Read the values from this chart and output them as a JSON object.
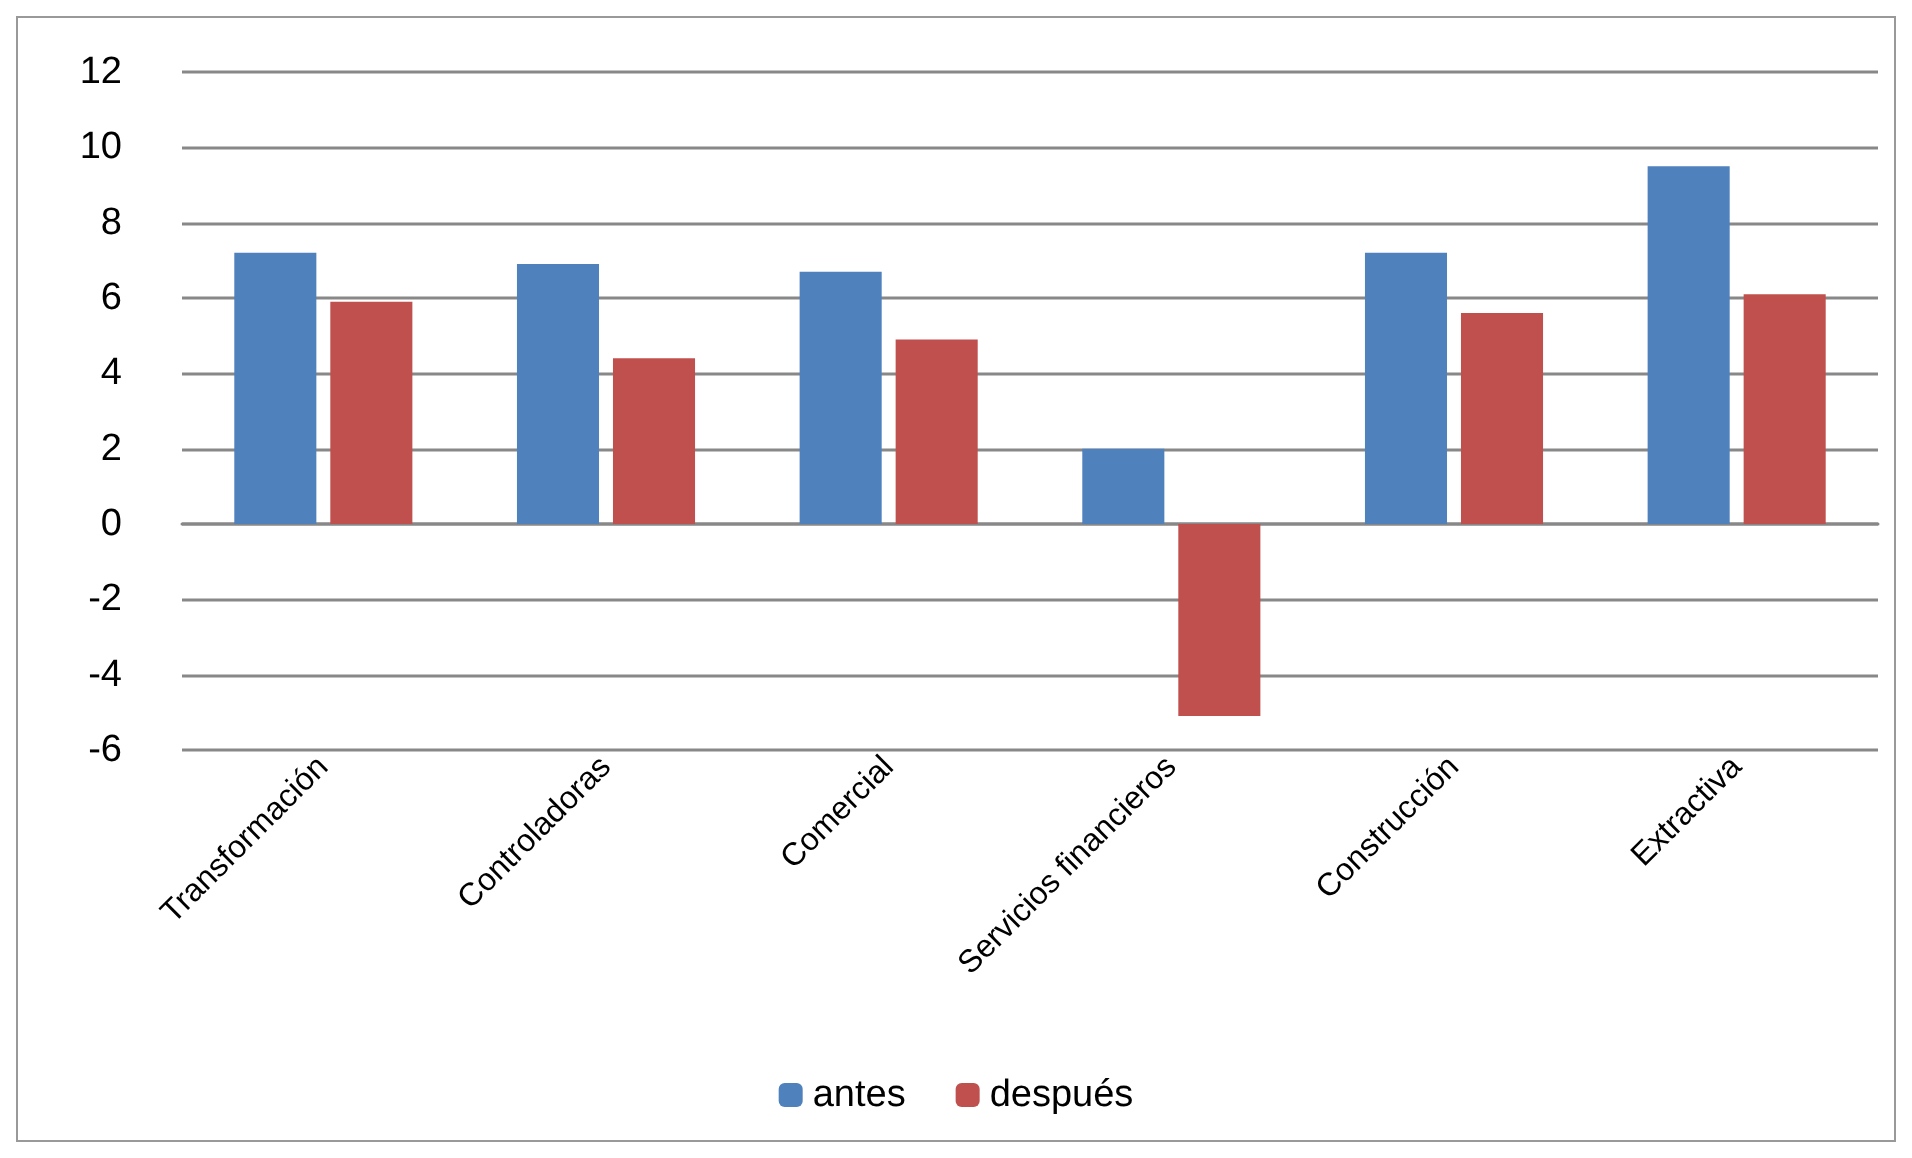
{
  "chart_data": {
    "type": "bar",
    "categories": [
      "Transformación",
      "Controladoras",
      "Comercial",
      "Servicios financieros",
      "Construcción",
      "Extractiva"
    ],
    "series": [
      {
        "name": "antes",
        "color": "#4f81bd",
        "values": [
          7.2,
          6.9,
          6.7,
          2.0,
          7.2,
          9.5
        ]
      },
      {
        "name": "después",
        "color": "#c0504d",
        "values": [
          5.9,
          4.4,
          4.9,
          -5.1,
          5.6,
          6.1
        ]
      }
    ],
    "ylim": [
      -6,
      12
    ],
    "yticks": [
      -6,
      -4,
      -2,
      0,
      2,
      4,
      6,
      8,
      10,
      12
    ],
    "grid": "y",
    "legend": "bottom"
  }
}
